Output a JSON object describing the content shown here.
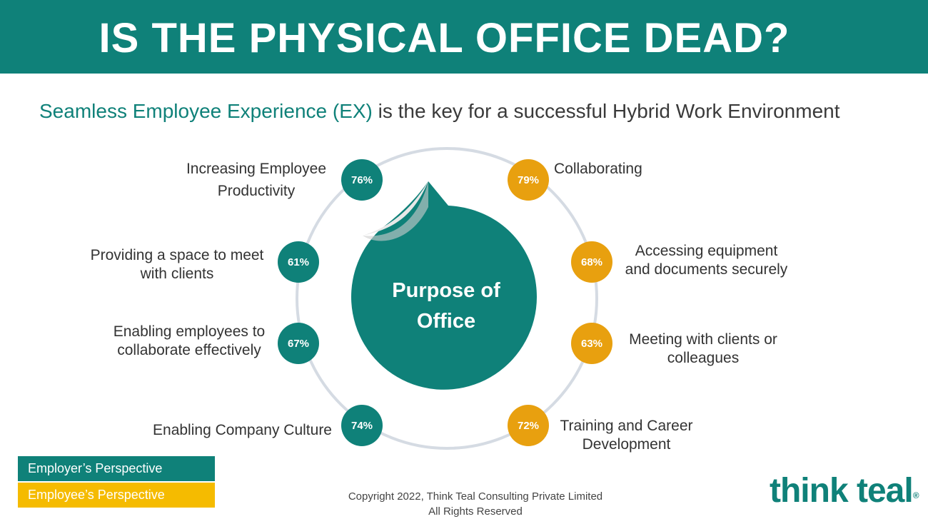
{
  "header": {
    "title": "IS THE PHYSICAL OFFICE DEAD?"
  },
  "subtitle": {
    "highlight": "Seamless Employee Experience (EX)",
    "rest": "is the key for a successful Hybrid Work Environment"
  },
  "center": {
    "line1": "Purpose of",
    "line2": "Office"
  },
  "employer_items": [
    {
      "value": "76%",
      "label_line1": "Increasing Employee",
      "label_line2": "Productivity"
    },
    {
      "value": "61%",
      "label_line1": "Providing a space to meet",
      "label_line2": "with clients"
    },
    {
      "value": "67%",
      "label_line1": "Enabling employees to",
      "label_line2": "collaborate effectively"
    },
    {
      "value": "74%",
      "label_line1": "Enabling Company Culture",
      "label_line2": ""
    }
  ],
  "employee_items": [
    {
      "value": "79%",
      "label_line1": "Collaborating",
      "label_line2": ""
    },
    {
      "value": "68%",
      "label_line1": "Accessing equipment",
      "label_line2": "and documents securely"
    },
    {
      "value": "63%",
      "label_line1": "Meeting with clients or",
      "label_line2": "colleagues"
    },
    {
      "value": "72%",
      "label_line1": "Training and Career",
      "label_line2": "Development"
    }
  ],
  "legend": [
    {
      "label": "Employer’s Perspective",
      "color": "#0f8179"
    },
    {
      "label": "Employee’s Perspective",
      "color": "#f5bb00"
    }
  ],
  "footer": {
    "copyright_line1": "Copyright 2022, Think Teal Consulting Private Limited",
    "copyright_line2": "All Rights Reserved",
    "logo": "think teal",
    "logo_mark": "®"
  },
  "colors": {
    "teal": "#0f8179",
    "amber": "#e8a00f",
    "ring": "#d5dbe3"
  }
}
